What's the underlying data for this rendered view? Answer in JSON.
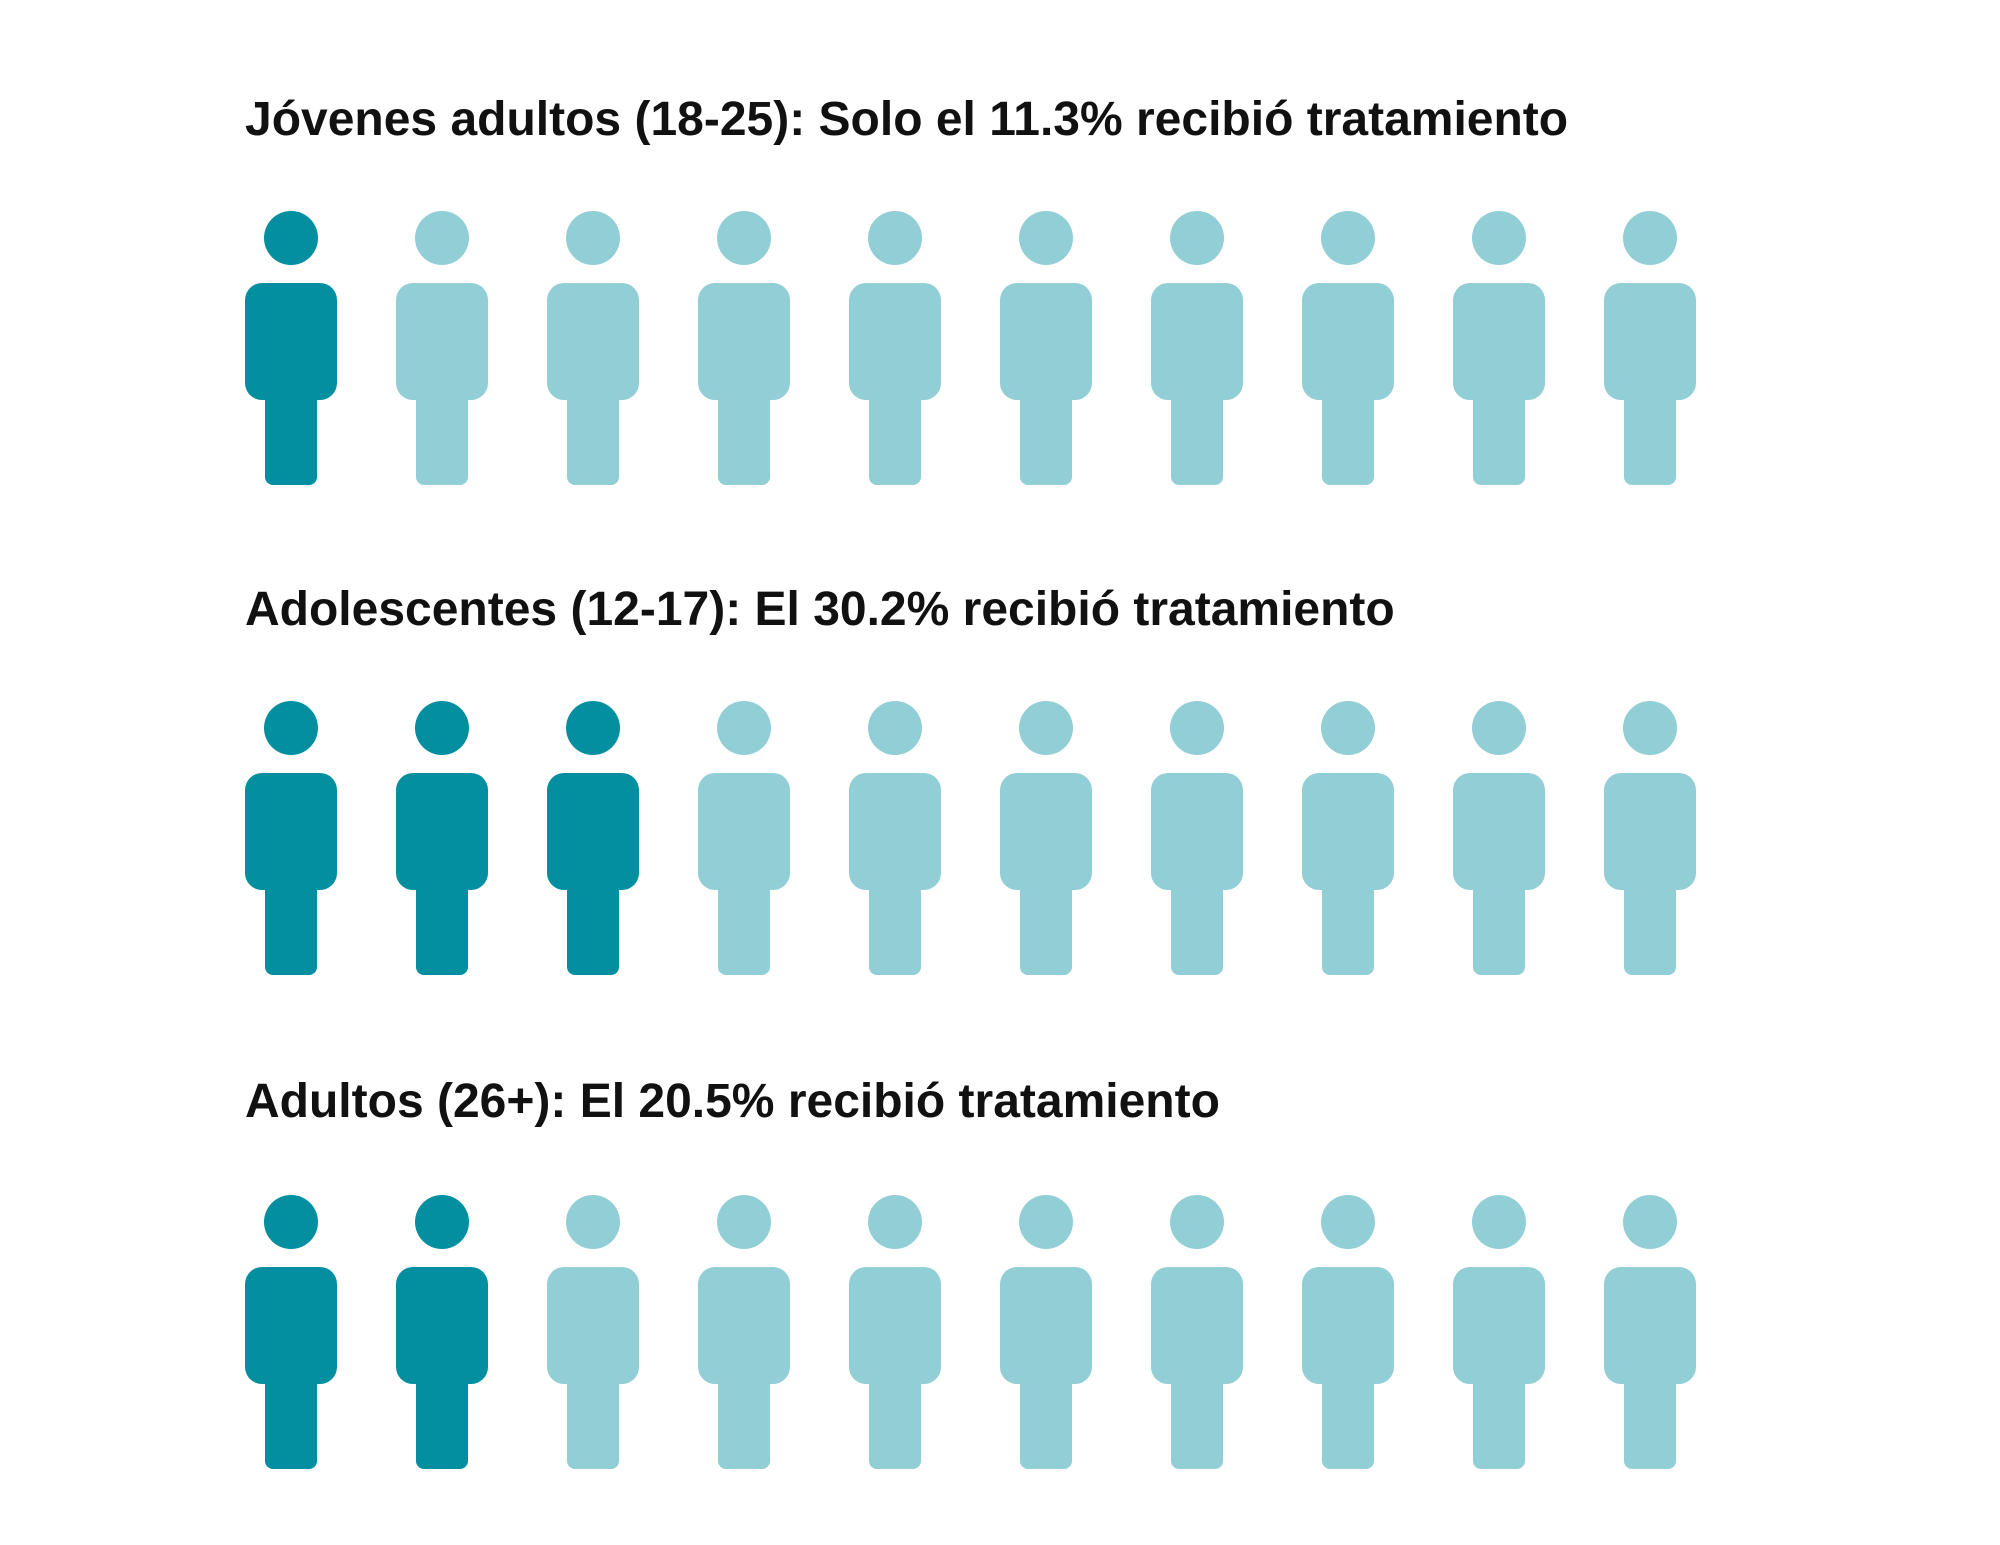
{
  "colors": {
    "treated": "#038fa0",
    "untreated": "#92ced6",
    "text": "#111111",
    "background": "#ffffff"
  },
  "icon": "person-icon",
  "chart_data": [
    {
      "type": "pictograph",
      "title": "Jóvenes adultos (18-25): Solo el 11.3% recibió tratamiento",
      "group": "Jóvenes adultos (18-25)",
      "value_percent": 11.3,
      "icons_total": 10,
      "icons_highlighted": 1
    },
    {
      "type": "pictograph",
      "title": "Adolescentes (12-17): El 30.2% recibió tratamiento",
      "group": "Adolescentes (12-17)",
      "value_percent": 30.2,
      "icons_total": 10,
      "icons_highlighted": 3
    },
    {
      "type": "pictograph",
      "title": "Adultos (26+): El 20.5% recibió tratamiento",
      "group": "Adultos (26+)",
      "value_percent": 20.5,
      "icons_total": 10,
      "icons_highlighted": 2
    }
  ]
}
